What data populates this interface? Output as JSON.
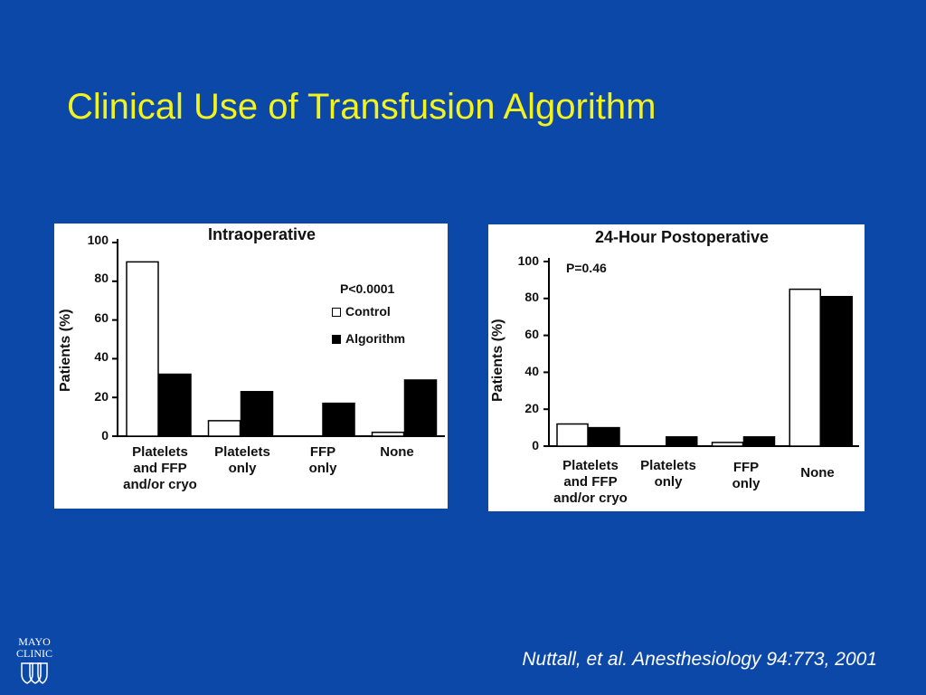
{
  "slide": {
    "title": "Clinical Use of Transfusion Algorithm",
    "citation": "Nuttall, et al. Anesthesiology 94:773, 2001",
    "logo_text": [
      "MAYO",
      "CLINIC"
    ],
    "colors": {
      "background": "#0b48a8",
      "title": "#f2f21e",
      "citation": "#ffffff"
    }
  },
  "chart_data": [
    {
      "type": "bar",
      "title": "Intraoperative",
      "ylabel": "Patients (%)",
      "xlabel": "",
      "ylim": [
        0,
        100
      ],
      "yticks": [
        "0",
        "20",
        "40",
        "60",
        "80",
        "100"
      ],
      "categories": [
        "Platelets\nand FFP\nand/or cryo",
        "Platelets\nonly",
        "FFP\nonly",
        "None"
      ],
      "series": [
        {
          "name": "Control",
          "fill": "#ffffff",
          "values": [
            90,
            8,
            0,
            2
          ]
        },
        {
          "name": "Algorithm",
          "fill": "#000000",
          "values": [
            32,
            23,
            17,
            29
          ]
        }
      ],
      "annotation": "P<0.0001",
      "legend": "right",
      "grid": false
    },
    {
      "type": "bar",
      "title": "24-Hour Postoperative",
      "ylabel": "Patients (%)",
      "xlabel": "",
      "ylim": [
        0,
        100
      ],
      "yticks": [
        "0",
        "20",
        "40",
        "60",
        "80",
        "100"
      ],
      "categories": [
        "Platelets\nand FFP\nand/or cryo",
        "Platelets\nonly",
        "FFP\nonly",
        "None"
      ],
      "series": [
        {
          "name": "Control",
          "fill": "#ffffff",
          "values": [
            12,
            0,
            2,
            85
          ]
        },
        {
          "name": "Algorithm",
          "fill": "#000000",
          "values": [
            10,
            5,
            5,
            81
          ]
        }
      ],
      "annotation": "P=0.46",
      "grid": false
    }
  ]
}
